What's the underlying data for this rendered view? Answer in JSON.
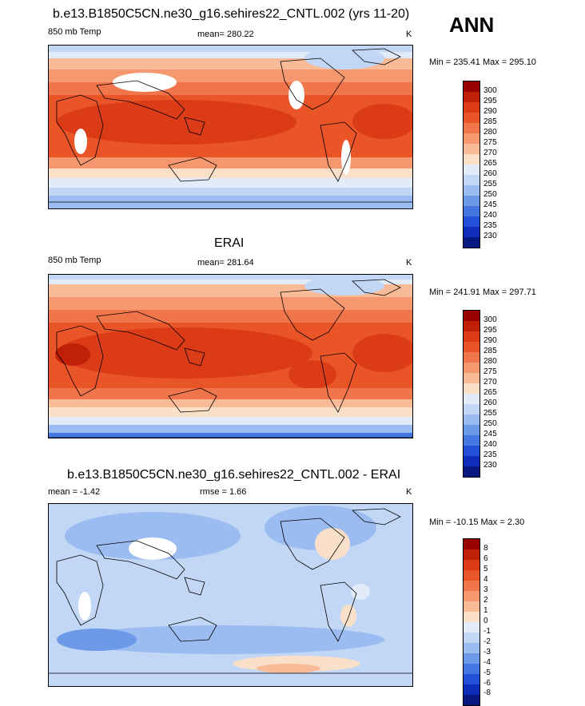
{
  "season": "ANN",
  "panels": [
    {
      "title": "b.e13.B1850C5CN.ne30_g16.sehires22_CNTL.002 (yrs 11-20)",
      "variable": "850 mb Temp",
      "stat": "mean= 280.22",
      "units": "K",
      "minmax": "Min = 235.41 Max = 295.10",
      "levels": [
        "300",
        "295",
        "290",
        "285",
        "280",
        "275",
        "270",
        "265",
        "260",
        "255",
        "250",
        "245",
        "240",
        "235",
        "230"
      ],
      "colors": [
        "#990000",
        "#c02007",
        "#dc3b18",
        "#ea5528",
        "#f1754a",
        "#f6986f",
        "#f9bb97",
        "#fbe0c9",
        "#e1ebf9",
        "#c1d7f5",
        "#9bbcf0",
        "#6d9ae8",
        "#4477e2",
        "#2350d6",
        "#0f2dbb",
        "#081880"
      ]
    },
    {
      "title": "ERAI",
      "variable": "850 mb Temp",
      "stat": "mean= 281.64",
      "units": "K",
      "minmax": "Min = 241.91 Max = 297.71",
      "levels": [
        "300",
        "295",
        "290",
        "285",
        "280",
        "275",
        "270",
        "265",
        "260",
        "255",
        "250",
        "245",
        "240",
        "235",
        "230"
      ],
      "colors": [
        "#990000",
        "#c02007",
        "#dc3b18",
        "#ea5528",
        "#f1754a",
        "#f6986f",
        "#f9bb97",
        "#fbe0c9",
        "#e1ebf9",
        "#c1d7f5",
        "#9bbcf0",
        "#6d9ae8",
        "#4477e2",
        "#2350d6",
        "#0f2dbb",
        "#081880"
      ]
    },
    {
      "title": "b.e13.B1850C5CN.ne30_g16.sehires22_CNTL.002 - ERAI",
      "variable": "mean =  -1.42",
      "stat": "rmse =   1.66",
      "units": "K",
      "minmax": "Min = -10.15 Max =   2.30",
      "levels": [
        "8",
        "6",
        "5",
        "4",
        "3",
        "2",
        "1",
        "0",
        "-1",
        "-2",
        "-3",
        "-4",
        "-5",
        "-6",
        "-8"
      ],
      "colors": [
        "#990000",
        "#c02007",
        "#dc3b18",
        "#ea5528",
        "#f1754a",
        "#f6986f",
        "#f9bb97",
        "#fbe0c9",
        "#e1ebf9",
        "#c1d7f5",
        "#9bbcf0",
        "#6d9ae8",
        "#4477e2",
        "#2350d6",
        "#0f2dbb",
        "#081880"
      ]
    }
  ]
}
